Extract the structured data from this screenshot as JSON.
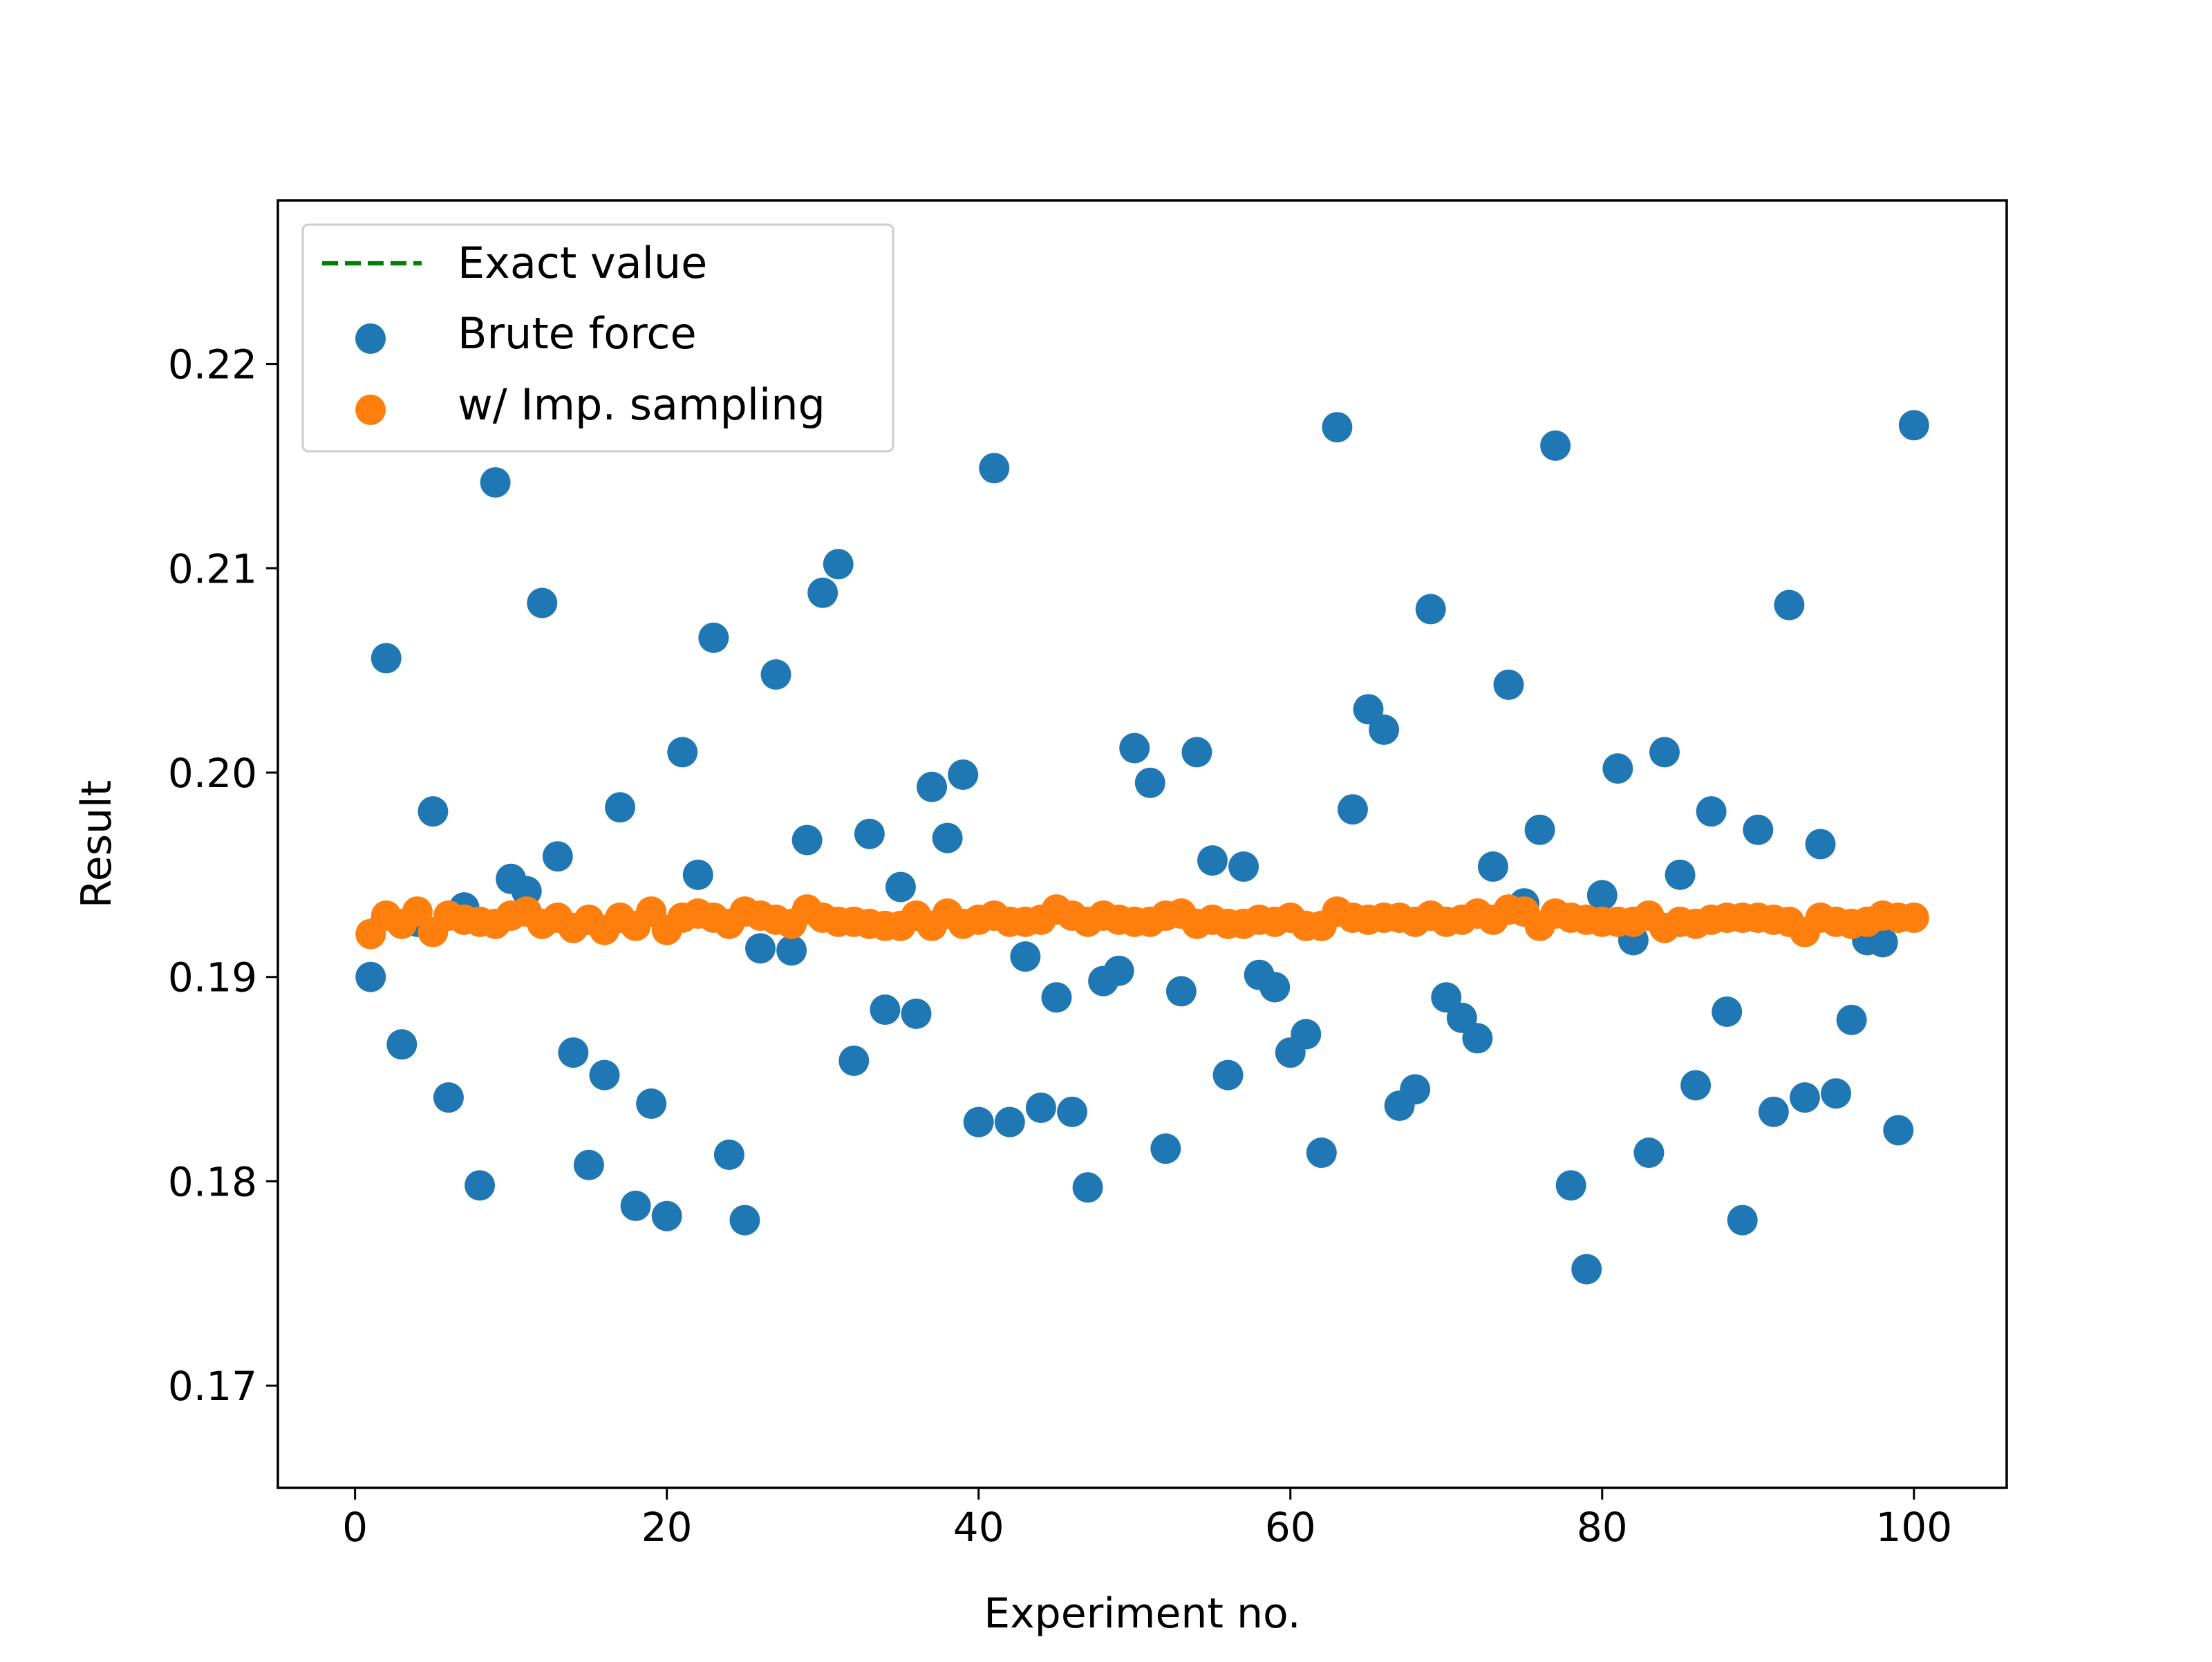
{
  "chart_data": {
    "type": "scatter",
    "title": "",
    "xlabel": "Experiment no.",
    "ylabel": "Result",
    "xlim": [
      -4.95,
      105.95
    ],
    "ylim": [
      0.165,
      0.228
    ],
    "x_ticks": [
      0,
      20,
      40,
      60,
      80,
      100
    ],
    "y_ticks": [
      0.17,
      0.18,
      0.19,
      0.2,
      0.21,
      0.22
    ],
    "x_tick_labels": [
      "0",
      "20",
      "40",
      "60",
      "80",
      "100"
    ],
    "y_tick_labels": [
      "0.17",
      "0.18",
      "0.19",
      "0.20",
      "0.21",
      "0.22"
    ],
    "grid": false,
    "legend_position": "upper-left",
    "legend": [
      {
        "label": "Exact value",
        "kind": "dashed-line",
        "color": "#008000"
      },
      {
        "label": "Brute force",
        "kind": "marker",
        "color": "#1f77b4"
      },
      {
        "label": "w/ Imp. sampling",
        "kind": "marker",
        "color": "#ff7f0e"
      }
    ],
    "exact_value": {
      "name": "Exact value",
      "x": [
        1,
        100
      ],
      "y": 0.1928,
      "color": "#008000"
    },
    "series": [
      {
        "name": "Brute force",
        "color": "#1f77b4",
        "x": [
          1,
          2,
          3,
          4,
          5,
          6,
          7,
          8,
          9,
          10,
          11,
          12,
          13,
          14,
          15,
          16,
          17,
          18,
          19,
          20,
          21,
          22,
          23,
          24,
          25,
          26,
          27,
          28,
          29,
          30,
          31,
          32,
          33,
          34,
          35,
          36,
          37,
          38,
          39,
          40,
          41,
          42,
          43,
          44,
          45,
          46,
          47,
          48,
          49,
          50,
          51,
          52,
          53,
          54,
          55,
          56,
          57,
          58,
          59,
          60,
          61,
          62,
          63,
          64,
          65,
          66,
          67,
          68,
          69,
          70,
          71,
          72,
          73,
          74,
          75,
          76,
          77,
          78,
          79,
          80,
          81,
          82,
          83,
          84,
          85,
          86,
          87,
          88,
          89,
          90,
          91,
          92,
          93,
          94,
          95,
          96,
          97,
          98,
          99,
          100
        ],
        "y": [
          0.19,
          0.2056,
          0.1867,
          0.1927,
          0.1981,
          0.1841,
          0.1934,
          0.1798,
          0.2142,
          0.1948,
          0.1942,
          0.2083,
          0.1959,
          0.1863,
          0.1808,
          0.1852,
          0.1983,
          0.1788,
          0.1838,
          0.1783,
          0.201,
          0.195,
          0.2066,
          0.1813,
          0.1781,
          0.1914,
          0.2048,
          0.1913,
          0.1967,
          0.2088,
          0.2102,
          0.1859,
          0.197,
          0.1884,
          0.1944,
          0.1882,
          0.1993,
          0.1968,
          0.1999,
          0.1829,
          0.2149,
          0.1829,
          0.191,
          0.1836,
          0.189,
          0.1834,
          0.1797,
          0.1898,
          0.1903,
          0.2012,
          0.1995,
          0.1816,
          0.1893,
          0.201,
          0.1957,
          0.1852,
          0.1954,
          0.1901,
          0.1895,
          0.1863,
          0.1872,
          0.1814,
          0.2169,
          0.1982,
          0.2031,
          0.2021,
          0.1837,
          0.1845,
          0.208,
          0.189,
          0.188,
          0.187,
          0.1954,
          0.2043,
          0.1936,
          0.1972,
          0.216,
          0.1798,
          0.1757,
          0.194,
          0.2002,
          0.1918,
          0.1814,
          0.201,
          0.195,
          0.1847,
          0.1981,
          0.1883,
          0.1781,
          0.1972,
          0.1834,
          0.2082,
          0.1841,
          0.1965,
          0.1843,
          0.1879,
          0.1918,
          0.1917,
          0.1825,
          0.217
        ]
      },
      {
        "name": "w/ Imp. sampling",
        "color": "#ff7f0e",
        "x": [
          1,
          2,
          3,
          4,
          5,
          6,
          7,
          8,
          9,
          10,
          11,
          12,
          13,
          14,
          15,
          16,
          17,
          18,
          19,
          20,
          21,
          22,
          23,
          24,
          25,
          26,
          27,
          28,
          29,
          30,
          31,
          32,
          33,
          34,
          35,
          36,
          37,
          38,
          39,
          40,
          41,
          42,
          43,
          44,
          45,
          46,
          47,
          48,
          49,
          50,
          51,
          52,
          53,
          54,
          55,
          56,
          57,
          58,
          59,
          60,
          61,
          62,
          63,
          64,
          65,
          66,
          67,
          68,
          69,
          70,
          71,
          72,
          73,
          74,
          75,
          76,
          77,
          78,
          79,
          80,
          81,
          82,
          83,
          84,
          85,
          86,
          87,
          88,
          89,
          90,
          91,
          92,
          93,
          94,
          95,
          96,
          97,
          98,
          99,
          100
        ],
        "y": [
          0.1921,
          0.193,
          0.1926,
          0.1932,
          0.1922,
          0.193,
          0.1928,
          0.1927,
          0.1926,
          0.193,
          0.1932,
          0.1926,
          0.1929,
          0.1924,
          0.1928,
          0.1923,
          0.1929,
          0.1925,
          0.1932,
          0.1923,
          0.1929,
          0.1931,
          0.1929,
          0.1926,
          0.1932,
          0.193,
          0.1928,
          0.1926,
          0.1933,
          0.1929,
          0.1927,
          0.1927,
          0.1926,
          0.1925,
          0.1925,
          0.193,
          0.1925,
          0.1931,
          0.1926,
          0.1928,
          0.193,
          0.1927,
          0.1927,
          0.1928,
          0.1933,
          0.193,
          0.1927,
          0.193,
          0.1928,
          0.1927,
          0.1927,
          0.193,
          0.1931,
          0.1926,
          0.1928,
          0.1926,
          0.1926,
          0.1928,
          0.1927,
          0.1929,
          0.1925,
          0.1925,
          0.1932,
          0.1929,
          0.1928,
          0.1929,
          0.1929,
          0.1927,
          0.193,
          0.1927,
          0.1928,
          0.1931,
          0.1928,
          0.1933,
          0.1932,
          0.1925,
          0.1931,
          0.1929,
          0.1928,
          0.1927,
          0.1927,
          0.1927,
          0.193,
          0.1924,
          0.1927,
          0.1926,
          0.1928,
          0.1929,
          0.1929,
          0.1929,
          0.1928,
          0.1927,
          0.1922,
          0.1929,
          0.1927,
          0.1926,
          0.1927,
          0.193,
          0.1929,
          0.1929
        ]
      }
    ]
  }
}
